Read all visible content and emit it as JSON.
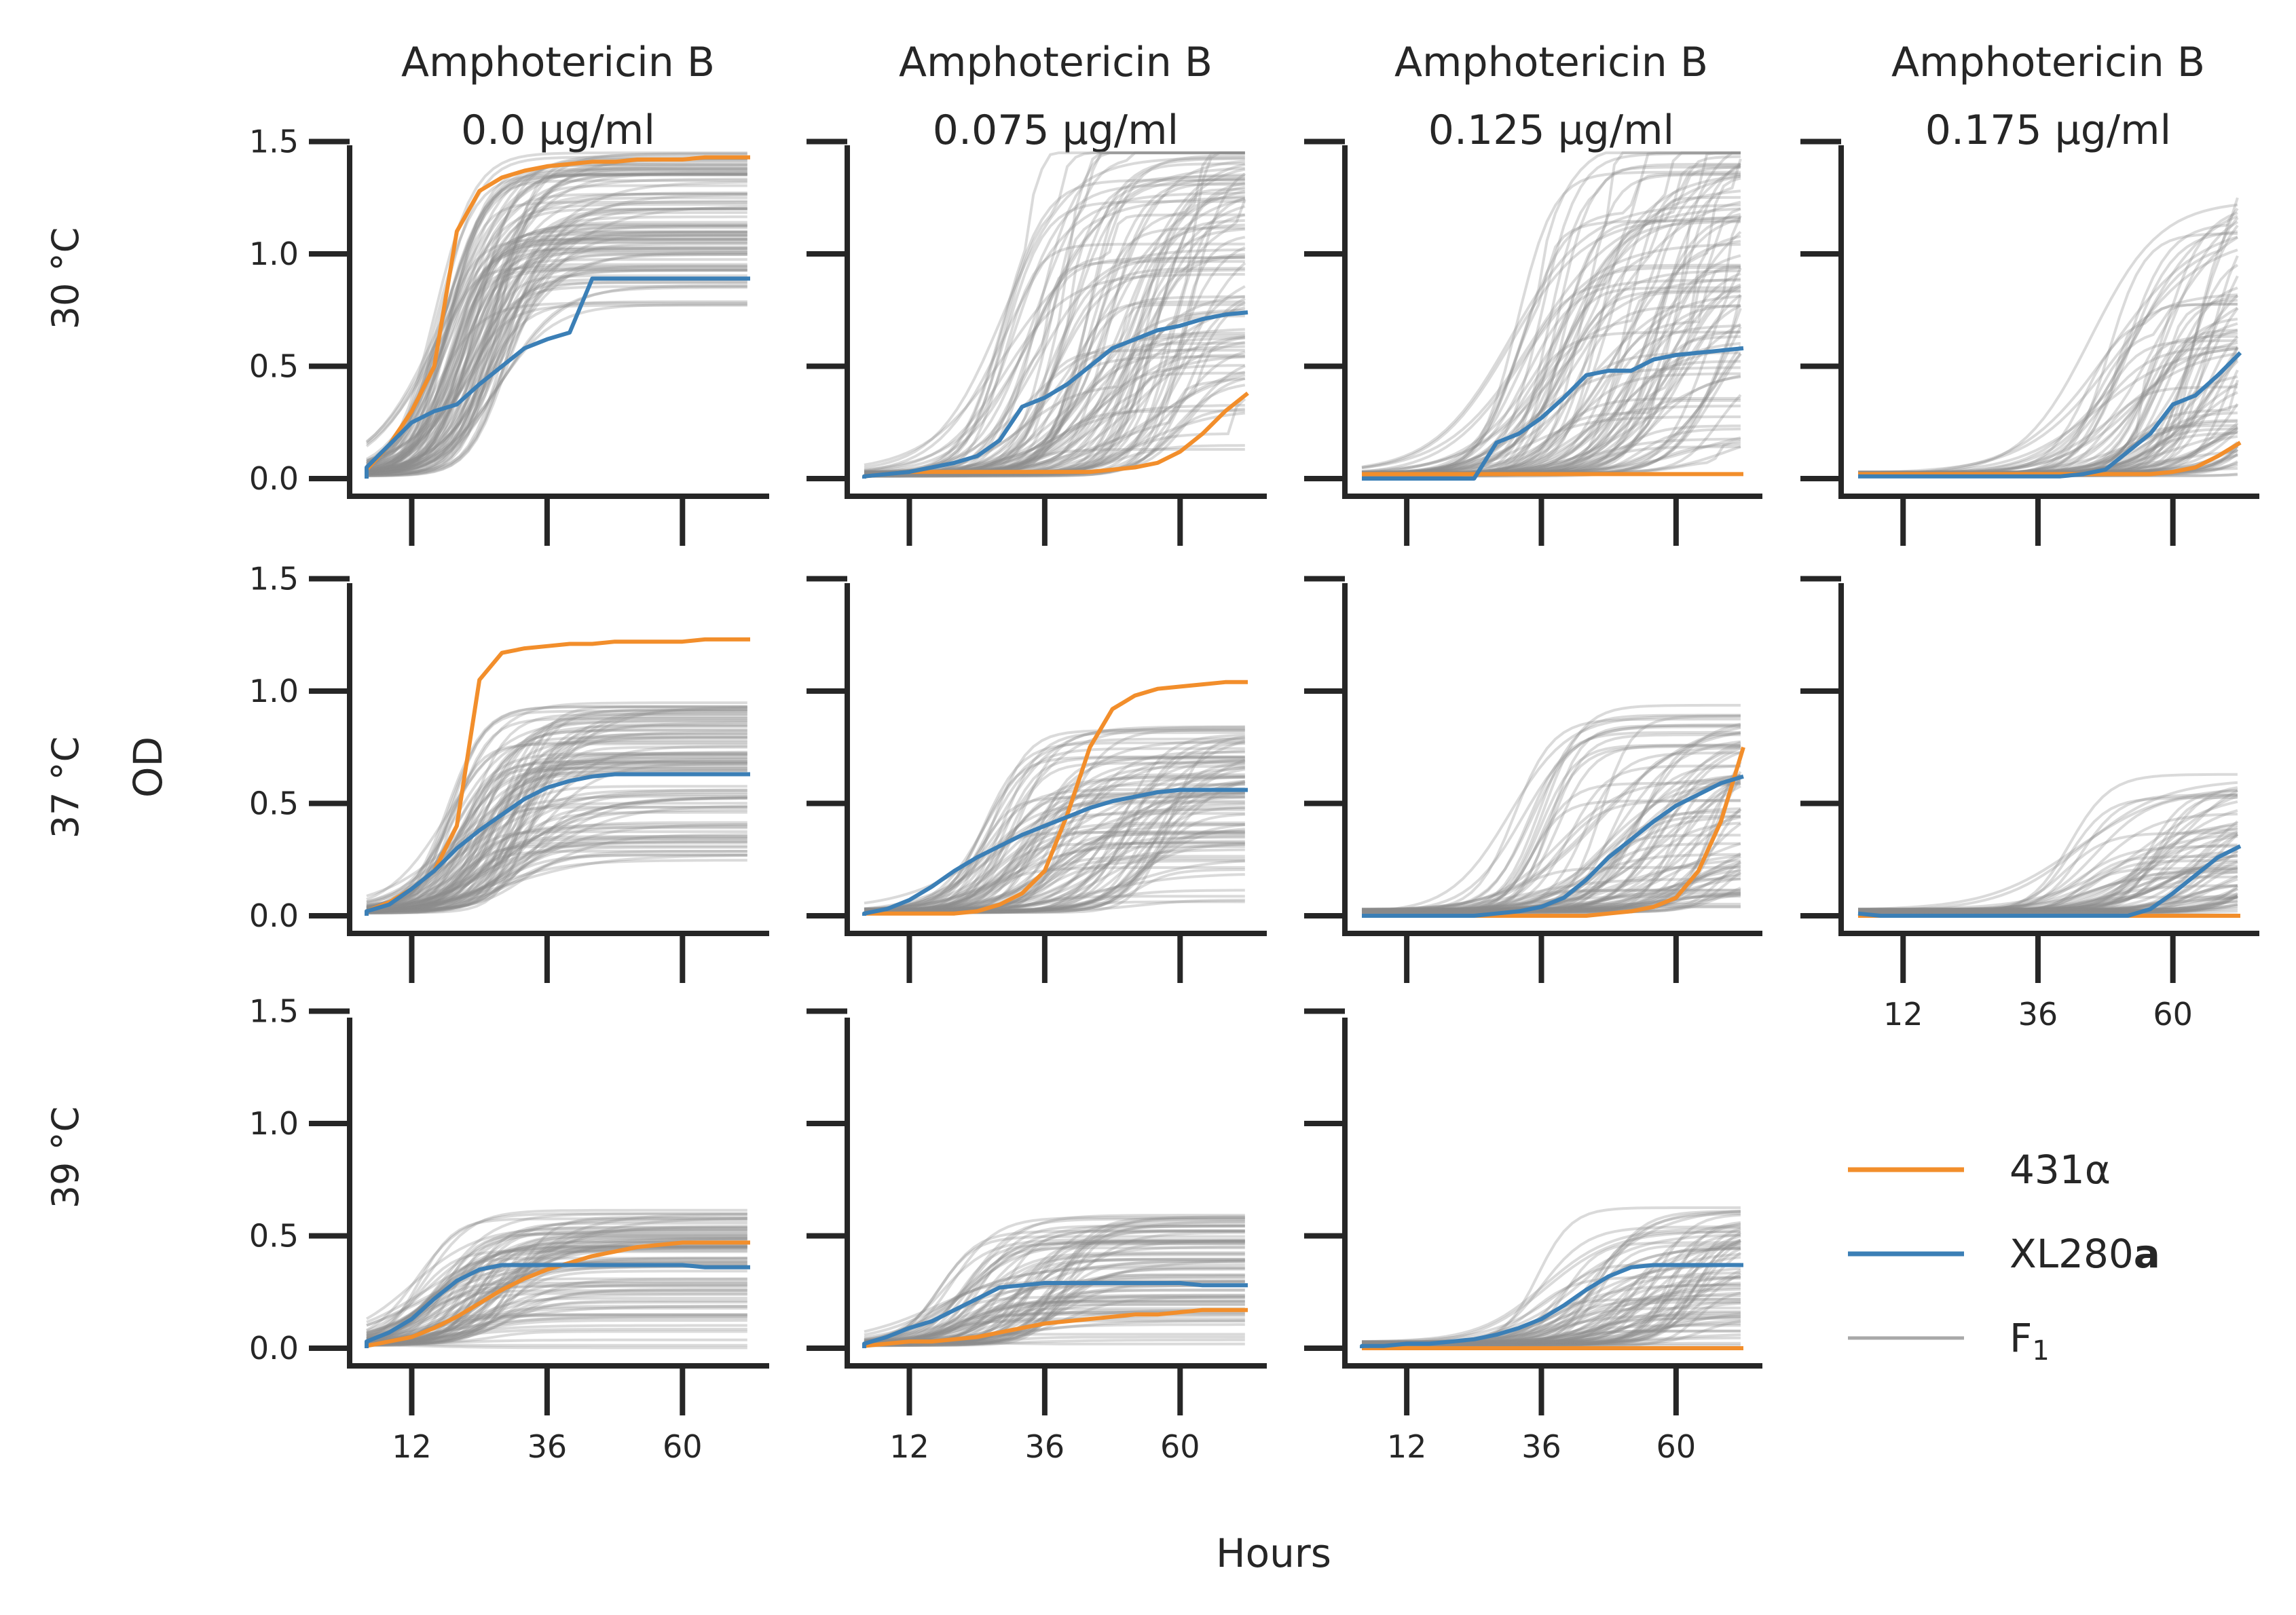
{
  "chart_data": {
    "type": "line",
    "layout": "3x4-facet-grid",
    "xlabel": "Hours",
    "ylabel": "OD",
    "xlim": [
      0,
      72
    ],
    "ylim": [
      0,
      1.55
    ],
    "xticks": [
      12,
      36,
      60
    ],
    "yticks": [
      0.0,
      0.5,
      1.0,
      1.5
    ],
    "columns": [
      {
        "title_line1": "Amphotericin B",
        "title_line2": "0.0 μg/ml"
      },
      {
        "title_line1": "Amphotericin B",
        "title_line2": "0.075 μg/ml"
      },
      {
        "title_line1": "Amphotericin B",
        "title_line2": "0.125 μg/ml"
      },
      {
        "title_line1": "Amphotericin B",
        "title_line2": "0.175 μg/ml"
      }
    ],
    "rows": [
      {
        "label": "30 °C"
      },
      {
        "label": "37 °C"
      },
      {
        "label": "39 °C"
      }
    ],
    "legend": {
      "placement": "right",
      "entries": [
        {
          "label": "431α",
          "color": "#f28e2b"
        },
        {
          "label": "XL280",
          "label_bold_suffix": "a",
          "color": "#3b7fb6"
        },
        {
          "label": "F",
          "label_subscript": "1",
          "color": "#a8a8a8"
        }
      ]
    },
    "colors": {
      "431a": "#f28e2b",
      "XL280a": "#3b7fb6",
      "F1": "#8c8c8c"
    },
    "x": [
      0,
      4,
      8,
      12,
      16,
      20,
      24,
      28,
      32,
      36,
      40,
      44,
      48,
      52,
      56,
      60,
      64,
      68,
      72
    ],
    "panels": [
      {
        "row": 0,
        "col": 0,
        "f1_count": 95,
        "f1_plateau": [
          0.75,
          1.45
        ],
        "f1_midpoint": [
          16,
          30
        ],
        "f1_jumpy": false,
        "series": [
          {
            "name": "431α",
            "values": [
              0,
              0.04,
              0.15,
              0.3,
              0.5,
              1.1,
              1.28,
              1.34,
              1.37,
              1.39,
              1.4,
              1.41,
              1.41,
              1.42,
              1.42,
              1.42,
              1.43,
              1.43,
              1.43
            ]
          },
          {
            "name": "XL280a",
            "values": [
              0,
              0.05,
              0.15,
              0.25,
              0.3,
              0.33,
              0.42,
              0.5,
              0.58,
              0.62,
              0.65,
              0.89,
              0.89,
              0.89,
              0.89,
              0.89,
              0.89,
              0.89,
              0.89
            ]
          }
        ]
      },
      {
        "row": 0,
        "col": 1,
        "f1_count": 95,
        "f1_plateau": [
          0.05,
          1.45
        ],
        "f1_midpoint": [
          28,
          62
        ],
        "f1_jumpy": true,
        "series": [
          {
            "name": "431α",
            "values": [
              0,
              0.01,
              0.02,
              0.03,
              0.03,
              0.03,
              0.03,
              0.03,
              0.03,
              0.03,
              0.03,
              0.03,
              0.04,
              0.05,
              0.07,
              0.12,
              0.2,
              0.3,
              0.38
            ]
          },
          {
            "name": "XL280a",
            "values": [
              0,
              0.01,
              0.02,
              0.03,
              0.05,
              0.07,
              0.1,
              0.17,
              0.32,
              0.36,
              0.42,
              0.5,
              0.58,
              0.62,
              0.66,
              0.68,
              0.71,
              0.73,
              0.74
            ]
          }
        ]
      },
      {
        "row": 0,
        "col": 2,
        "f1_count": 90,
        "f1_plateau": [
          0.02,
          1.45
        ],
        "f1_midpoint": [
          30,
          70
        ],
        "f1_jumpy": true,
        "series": [
          {
            "name": "431α",
            "values": [
              0.02,
              0.02,
              0.02,
              0.02,
              0.02,
              0.02,
              0.02,
              0.02,
              0.02,
              0.02,
              0.02,
              0.02,
              0.02,
              0.02,
              0.02,
              0.02,
              0.02,
              0.02,
              0.02
            ]
          },
          {
            "name": "XL280a",
            "values": [
              0,
              0,
              0,
              0,
              0,
              0,
              0,
              0.16,
              0.2,
              0.27,
              0.36,
              0.46,
              0.48,
              0.48,
              0.53,
              0.55,
              0.56,
              0.57,
              0.58
            ]
          }
        ]
      },
      {
        "row": 0,
        "col": 3,
        "f1_count": 80,
        "f1_plateau": [
          0.0,
          1.25
        ],
        "f1_midpoint": [
          44,
          80
        ],
        "f1_jumpy": true,
        "series": [
          {
            "name": "431α",
            "values": [
              0.02,
              0.02,
              0.02,
              0.02,
              0.02,
              0.02,
              0.02,
              0.02,
              0.02,
              0.02,
              0.02,
              0.02,
              0.02,
              0.02,
              0.02,
              0.03,
              0.05,
              0.1,
              0.16
            ]
          },
          {
            "name": "XL280a",
            "values": [
              0.01,
              0.01,
              0.01,
              0.01,
              0.01,
              0.01,
              0.01,
              0.01,
              0.01,
              0.01,
              0.01,
              0.02,
              0.04,
              0.12,
              0.2,
              0.33,
              0.37,
              0.46,
              0.56
            ]
          }
        ]
      },
      {
        "row": 1,
        "col": 0,
        "f1_count": 95,
        "f1_plateau": [
          0.22,
          0.95
        ],
        "f1_midpoint": [
          18,
          34
        ],
        "f1_jumpy": false,
        "series": [
          {
            "name": "431α",
            "values": [
              0,
              0.02,
              0.06,
              0.12,
              0.2,
              0.4,
              1.05,
              1.17,
              1.19,
              1.2,
              1.21,
              1.21,
              1.22,
              1.22,
              1.22,
              1.22,
              1.23,
              1.23,
              1.23
            ]
          },
          {
            "name": "XL280a",
            "values": [
              0,
              0.02,
              0.05,
              0.12,
              0.2,
              0.3,
              0.38,
              0.45,
              0.52,
              0.57,
              0.6,
              0.62,
              0.63,
              0.63,
              0.63,
              0.63,
              0.63,
              0.63,
              0.63
            ]
          }
        ]
      },
      {
        "row": 1,
        "col": 1,
        "f1_count": 90,
        "f1_plateau": [
          0.05,
          0.85
        ],
        "f1_midpoint": [
          24,
          58
        ],
        "f1_jumpy": false,
        "series": [
          {
            "name": "431α",
            "values": [
              0,
              0.01,
              0.01,
              0.01,
              0.01,
              0.01,
              0.02,
              0.05,
              0.1,
              0.2,
              0.45,
              0.75,
              0.92,
              0.98,
              1.01,
              1.02,
              1.03,
              1.04,
              1.04
            ]
          },
          {
            "name": "XL280a",
            "values": [
              0,
              0.01,
              0.03,
              0.07,
              0.13,
              0.2,
              0.26,
              0.31,
              0.36,
              0.4,
              0.44,
              0.48,
              0.51,
              0.53,
              0.55,
              0.56,
              0.56,
              0.56,
              0.56
            ]
          }
        ]
      },
      {
        "row": 1,
        "col": 2,
        "f1_count": 85,
        "f1_plateau": [
          0.02,
          0.95
        ],
        "f1_midpoint": [
          30,
          70
        ],
        "f1_jumpy": false,
        "series": [
          {
            "name": "431α",
            "values": [
              0,
              0,
              0,
              0,
              0,
              0,
              0,
              0,
              0,
              0,
              0,
              0,
              0.01,
              0.02,
              0.04,
              0.08,
              0.2,
              0.42,
              0.75
            ]
          },
          {
            "name": "XL280a",
            "values": [
              0,
              0,
              0,
              0,
              0,
              0,
              0,
              0.01,
              0.02,
              0.04,
              0.08,
              0.16,
              0.26,
              0.34,
              0.42,
              0.49,
              0.54,
              0.59,
              0.62
            ]
          }
        ]
      },
      {
        "row": 1,
        "col": 3,
        "f1_count": 70,
        "f1_plateau": [
          0.0,
          0.65
        ],
        "f1_midpoint": [
          40,
          78
        ],
        "f1_jumpy": false,
        "series": [
          {
            "name": "431α",
            "values": [
              0,
              0,
              0,
              0,
              0,
              0,
              0,
              0,
              0,
              0,
              0,
              0,
              0,
              0,
              0,
              0,
              0,
              0,
              0
            ]
          },
          {
            "name": "XL280a",
            "values": [
              0.01,
              0.01,
              0,
              0,
              0,
              0,
              0,
              0,
              0,
              0,
              0,
              0,
              0,
              0,
              0.03,
              0.1,
              0.18,
              0.26,
              0.31
            ]
          }
        ]
      },
      {
        "row": 2,
        "col": 0,
        "f1_count": 85,
        "f1_plateau": [
          0.0,
          0.62
        ],
        "f1_midpoint": [
          12,
          30
        ],
        "f1_jumpy": false,
        "series": [
          {
            "name": "431α",
            "values": [
              0,
              0.01,
              0.03,
              0.05,
              0.09,
              0.14,
              0.2,
              0.26,
              0.31,
              0.35,
              0.38,
              0.41,
              0.43,
              0.45,
              0.46,
              0.47,
              0.47,
              0.47,
              0.47
            ]
          },
          {
            "name": "XL280a",
            "values": [
              0,
              0.03,
              0.07,
              0.13,
              0.22,
              0.3,
              0.35,
              0.37,
              0.37,
              0.37,
              0.37,
              0.37,
              0.37,
              0.37,
              0.37,
              0.37,
              0.36,
              0.36,
              0.36
            ]
          }
        ]
      },
      {
        "row": 2,
        "col": 1,
        "f1_count": 80,
        "f1_plateau": [
          0.0,
          0.6
        ],
        "f1_midpoint": [
          16,
          40
        ],
        "f1_jumpy": false,
        "series": [
          {
            "name": "431α",
            "values": [
              0,
              0.01,
              0.02,
              0.03,
              0.03,
              0.04,
              0.05,
              0.07,
              0.09,
              0.11,
              0.12,
              0.13,
              0.14,
              0.15,
              0.15,
              0.16,
              0.17,
              0.17,
              0.17
            ]
          },
          {
            "name": "XL280a",
            "values": [
              0,
              0.02,
              0.05,
              0.09,
              0.12,
              0.17,
              0.22,
              0.27,
              0.28,
              0.29,
              0.29,
              0.29,
              0.29,
              0.29,
              0.29,
              0.29,
              0.28,
              0.28,
              0.28
            ]
          }
        ]
      },
      {
        "row": 2,
        "col": 2,
        "f1_count": 75,
        "f1_plateau": [
          0.0,
          0.64
        ],
        "f1_midpoint": [
          34,
          66
        ],
        "f1_jumpy": false,
        "series": [
          {
            "name": "431α",
            "values": [
              0,
              0,
              0,
              0,
              0,
              0,
              0,
              0,
              0,
              0,
              0,
              0,
              0,
              0,
              0,
              0,
              0,
              0,
              0
            ]
          },
          {
            "name": "XL280a",
            "values": [
              0,
              0.01,
              0.01,
              0.02,
              0.02,
              0.03,
              0.04,
              0.06,
              0.09,
              0.13,
              0.19,
              0.26,
              0.32,
              0.36,
              0.37,
              0.37,
              0.37,
              0.37,
              0.37
            ]
          }
        ]
      }
    ]
  }
}
